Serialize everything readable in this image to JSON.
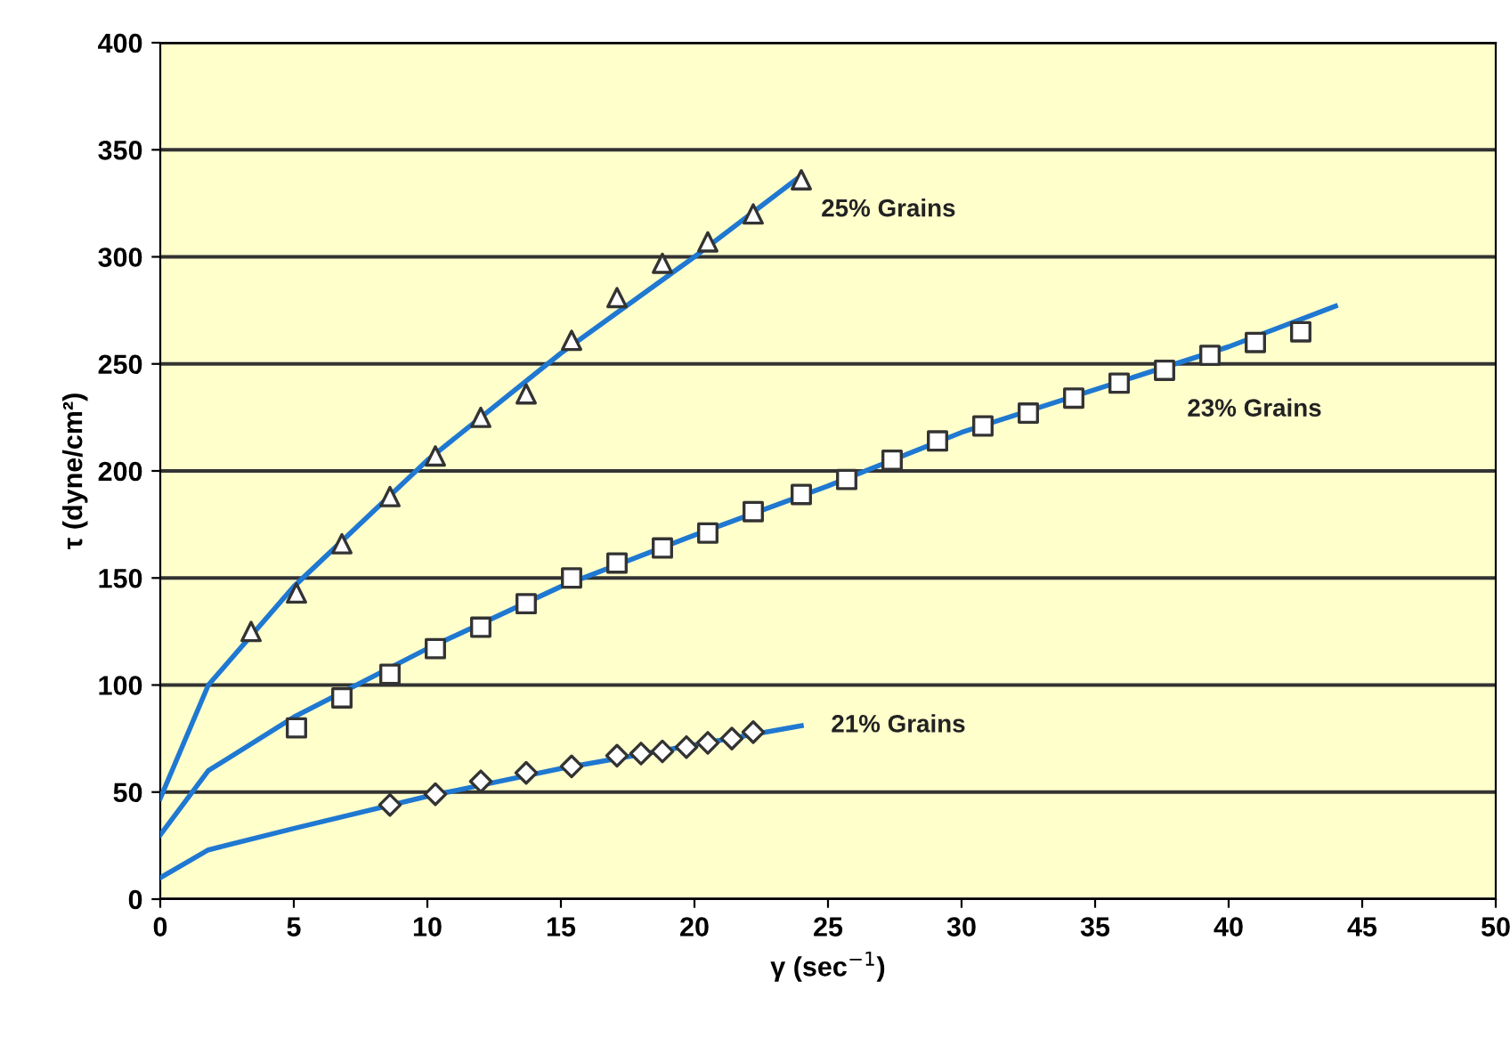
{
  "chart_data": {
    "type": "scatter",
    "xlabel": "γ (sec$^{−1}$)",
    "ylabel": "τ (dyne/cm²)",
    "xlim": [
      0,
      50
    ],
    "ylim": [
      0,
      400
    ],
    "xticks": [
      0,
      5,
      10,
      15,
      20,
      25,
      30,
      35,
      40,
      45,
      50
    ],
    "yticks": [
      0,
      50,
      100,
      150,
      200,
      250,
      300,
      350,
      400
    ],
    "grid": "y",
    "legend": false,
    "series": [
      {
        "type": "line",
        "name": "25% Grains",
        "color": "#1f78d1",
        "marker": "none",
        "x": [
          0,
          1.8,
          5,
          10,
          15,
          20,
          24
        ],
        "values": [
          47,
          100,
          146,
          205,
          255,
          300,
          338
        ]
      },
      {
        "type": "line",
        "name": "23% Grains",
        "color": "#1f78d1",
        "marker": "none",
        "x": [
          0,
          1.8,
          5,
          10,
          15,
          20,
          25,
          30,
          35,
          40,
          44
        ],
        "values": [
          30,
          60,
          85,
          117,
          146,
          170,
          193,
          218,
          238,
          258,
          277
        ]
      },
      {
        "type": "line",
        "name": "21% Grains",
        "color": "#1f78d1",
        "marker": "none",
        "x": [
          0,
          1.8,
          5,
          10,
          15,
          20,
          24
        ],
        "values": [
          10,
          23,
          33,
          48,
          61,
          72,
          81
        ]
      },
      {
        "color": "#ffffff",
        "marker": "triangle",
        "x": [
          3.4,
          5.1,
          6.8,
          8.6,
          10.3,
          12,
          13.7,
          15.4,
          17.1,
          18.8,
          20.5,
          22.2,
          24
        ],
        "values": [
          125,
          143,
          166,
          188,
          207,
          225,
          236,
          261,
          281,
          297,
          307,
          320,
          336
        ]
      },
      {
        "color": "#ffffff",
        "marker": "square",
        "x": [
          5.1,
          6.8,
          8.6,
          10.3,
          12,
          13.7,
          15.4,
          17.1,
          18.8,
          20.5,
          22.2,
          24,
          25.7,
          27.4,
          29.1,
          30.8,
          32.5,
          34.2,
          35.9,
          37.6,
          39.3,
          41,
          42.7
        ],
        "values": [
          80,
          94,
          105,
          117,
          127,
          138,
          150,
          157,
          164,
          171,
          181,
          189,
          196,
          205,
          214,
          221,
          227,
          234,
          241,
          247,
          254,
          260,
          265
        ]
      },
      {
        "color": "#ffffff",
        "marker": "diamond",
        "x": [
          8.6,
          10.3,
          12,
          13.7,
          15.4,
          17.1,
          18,
          18.8,
          19.7,
          20.5,
          21.4,
          22.2
        ],
        "values": [
          44,
          49,
          55,
          59,
          62,
          67,
          68,
          69,
          71,
          73,
          75,
          78
        ]
      }
    ]
  }
}
